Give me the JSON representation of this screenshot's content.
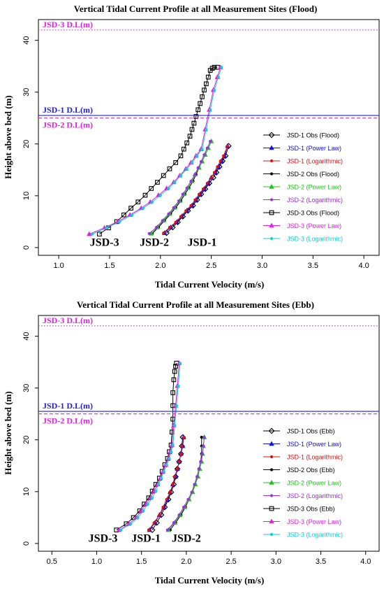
{
  "chart_data": [
    {
      "type": "line",
      "title": "Vertical Tidal Current Profile at all Measurement Sites (Flood)",
      "xlabel": "Tidal Current Velocity (m/s)",
      "ylabel": "Height above bed (m)",
      "xlim": [
        0.8,
        4.15
      ],
      "ylim": [
        -1.5,
        44
      ],
      "xticks": [
        "1.0",
        "1.5",
        "2.0",
        "2.5",
        "3.0",
        "3.5",
        "4.0"
      ],
      "yticks": [
        "0",
        "10",
        "20",
        "30",
        "40"
      ],
      "xtick_values": [
        1.0,
        1.5,
        2.0,
        2.5,
        3.0,
        3.5,
        4.0
      ],
      "ytick_values": [
        0,
        10,
        20,
        30,
        40
      ],
      "grid": false,
      "legend_position": "right",
      "hlines": [
        {
          "label": "JSD-3 D.L(m)",
          "y": 42.0,
          "color": "#e020e0",
          "style": "dotted"
        },
        {
          "label": "JSD-1 D.L(m)",
          "y": 25.5,
          "color": "#2020e0",
          "style": "solid"
        },
        {
          "label": "JSD-2 D.L(m)",
          "y": 25.0,
          "color": "#e020e0",
          "style": "dashed"
        }
      ],
      "site_labels": [
        {
          "text": "JSD-3",
          "x": 1.45,
          "y": 0.3
        },
        {
          "text": "JSD-2",
          "x": 1.94,
          "y": 0.3
        },
        {
          "text": "JSD-1",
          "x": 2.41,
          "y": 0.3
        }
      ],
      "series": [
        {
          "name": "JSD-1 Obs (Flood)",
          "color": "#000000",
          "marker": "diamond",
          "x": [
            2.06,
            2.12,
            2.17,
            2.22,
            2.27,
            2.32,
            2.36,
            2.4,
            2.44,
            2.48,
            2.52,
            2.55,
            2.58,
            2.61,
            2.64,
            2.67
          ],
          "y": [
            2.8,
            3.9,
            4.9,
            6.0,
            7.1,
            8.1,
            9.2,
            10.3,
            11.3,
            12.4,
            13.5,
            14.5,
            15.6,
            16.7,
            17.7,
            19.6
          ]
        },
        {
          "name": "JSD-1 (Power Law)",
          "color": "#1010e0",
          "marker": "triangle",
          "x": [
            2.04,
            2.1,
            2.16,
            2.21,
            2.26,
            2.31,
            2.35,
            2.39,
            2.43,
            2.47,
            2.5,
            2.54,
            2.57,
            2.6,
            2.63,
            2.66
          ],
          "y": [
            2.8,
            3.9,
            4.9,
            6.0,
            7.1,
            8.1,
            9.2,
            10.3,
            11.3,
            12.4,
            13.5,
            14.5,
            15.6,
            16.7,
            17.7,
            19.6
          ]
        },
        {
          "name": "JSD-1 (Logarithmic)",
          "color": "#e01010",
          "marker": "dot",
          "x": [
            2.03,
            2.09,
            2.15,
            2.2,
            2.25,
            2.3,
            2.34,
            2.38,
            2.42,
            2.46,
            2.5,
            2.53,
            2.56,
            2.59,
            2.62,
            2.66
          ],
          "y": [
            2.8,
            3.9,
            4.9,
            6.0,
            7.1,
            8.1,
            9.2,
            10.3,
            11.3,
            12.4,
            13.5,
            14.5,
            15.6,
            16.7,
            17.7,
            19.6
          ]
        },
        {
          "name": "JSD-2 Obs (Flood)",
          "color": "#000000",
          "marker": "dot",
          "x": [
            1.92,
            1.98,
            2.04,
            2.1,
            2.15,
            2.2,
            2.24,
            2.28,
            2.32,
            2.35,
            2.38,
            2.41,
            2.44,
            2.47,
            2.5
          ],
          "y": [
            2.7,
            3.9,
            5.2,
            6.5,
            7.7,
            9.0,
            10.3,
            11.5,
            12.8,
            14.1,
            15.4,
            16.6,
            17.9,
            19.2,
            20.5
          ]
        },
        {
          "name": "JSD-2 (Power Law)",
          "color": "#20c020",
          "marker": "triangle",
          "x": [
            1.91,
            1.97,
            2.03,
            2.09,
            2.14,
            2.19,
            2.23,
            2.27,
            2.31,
            2.34,
            2.38,
            2.41,
            2.44,
            2.47,
            2.5
          ],
          "y": [
            2.7,
            3.9,
            5.2,
            6.5,
            7.7,
            9.0,
            10.3,
            11.5,
            12.8,
            14.1,
            15.4,
            16.6,
            17.9,
            19.2,
            20.5
          ]
        },
        {
          "name": "JSD-2 (Logarithmic)",
          "color": "#9a30e0",
          "marker": "dot",
          "x": [
            1.89,
            1.96,
            2.02,
            2.08,
            2.13,
            2.18,
            2.22,
            2.26,
            2.3,
            2.34,
            2.37,
            2.4,
            2.43,
            2.46,
            2.49
          ],
          "y": [
            2.7,
            3.9,
            5.2,
            6.5,
            7.7,
            9.0,
            10.3,
            11.5,
            12.8,
            14.1,
            15.4,
            16.6,
            17.9,
            19.2,
            20.5
          ]
        },
        {
          "name": "JSD-3 Obs (Flood)",
          "color": "#000000",
          "marker": "square",
          "x": [
            1.4,
            1.49,
            1.57,
            1.64,
            1.71,
            1.78,
            1.85,
            1.91,
            1.97,
            2.03,
            2.09,
            2.15,
            2.2,
            2.23,
            2.26,
            2.29,
            2.31,
            2.33,
            2.35,
            2.37,
            2.39,
            2.41,
            2.43,
            2.45,
            2.47,
            2.49,
            2.51,
            2.53,
            2.56
          ],
          "y": [
            2.6,
            3.8,
            5.0,
            6.3,
            7.6,
            8.8,
            10.1,
            11.4,
            12.6,
            13.9,
            15.2,
            16.4,
            17.7,
            19.0,
            20.2,
            21.5,
            22.8,
            24.0,
            25.3,
            26.6,
            27.8,
            29.1,
            30.4,
            31.6,
            32.9,
            34.2,
            34.6,
            34.8,
            34.8
          ]
        },
        {
          "name": "JSD-3 (Power Law)",
          "color": "#e020e0",
          "marker": "triangle",
          "x": [
            1.3,
            1.45,
            1.58,
            1.7,
            1.81,
            1.9,
            1.98,
            2.06,
            2.13,
            2.19,
            2.25,
            2.3,
            2.35,
            2.4,
            2.44,
            2.48,
            2.52,
            2.56,
            2.59
          ],
          "y": [
            2.6,
            3.8,
            5.0,
            6.3,
            7.6,
            8.8,
            10.1,
            11.4,
            12.6,
            13.9,
            15.2,
            16.4,
            17.7,
            19.0,
            22.8,
            26.6,
            30.4,
            32.9,
            34.8
          ]
        },
        {
          "name": "JSD-3 (Logarithmic)",
          "color": "#10d0d0",
          "marker": "dot",
          "x": [
            1.33,
            1.47,
            1.6,
            1.72,
            1.83,
            1.92,
            2.0,
            2.08,
            2.14,
            2.2,
            2.26,
            2.31,
            2.36,
            2.41,
            2.45,
            2.49,
            2.53,
            2.57,
            2.6
          ],
          "y": [
            2.6,
            3.8,
            5.0,
            6.3,
            7.6,
            8.8,
            10.1,
            11.4,
            12.6,
            13.9,
            15.2,
            16.4,
            17.7,
            19.0,
            22.8,
            26.6,
            30.4,
            32.9,
            34.8
          ]
        }
      ]
    },
    {
      "type": "line",
      "title": "Vertical Tidal Current Profile at all Measurement Sites (Ebb)",
      "xlabel": "Tidal Current Velocity (m/s)",
      "ylabel": "Height above bed (m)",
      "xlim": [
        0.35,
        4.15
      ],
      "ylim": [
        -1.5,
        44
      ],
      "xticks": [
        "0.5",
        "1.0",
        "1.5",
        "2.0",
        "2.5",
        "3.0",
        "3.5",
        "4.0"
      ],
      "yticks": [
        "0",
        "10",
        "20",
        "30",
        "40"
      ],
      "xtick_values": [
        0.5,
        1.0,
        1.5,
        2.0,
        2.5,
        3.0,
        3.5,
        4.0
      ],
      "ytick_values": [
        0,
        10,
        20,
        30,
        40
      ],
      "grid": false,
      "legend_position": "right",
      "hlines": [
        {
          "label": "JSD-3 D.L(m)",
          "y": 42.0,
          "color": "#e020e0",
          "style": "dotted"
        },
        {
          "label": "JSD-1 D.L(m)",
          "y": 25.5,
          "color": "#2020e0",
          "style": "solid"
        },
        {
          "label": "JSD-2 D.L(m)",
          "y": 25.0,
          "color": "#e020e0",
          "style": "dashed"
        }
      ],
      "site_labels": [
        {
          "text": "JSD-3",
          "x": 1.07,
          "y": 0.3
        },
        {
          "text": "JSD-1",
          "x": 1.55,
          "y": 0.3
        },
        {
          "text": "JSD-2",
          "x": 2.0,
          "y": 0.3
        }
      ],
      "series": [
        {
          "name": "JSD-1 Obs (Ebb)",
          "color": "#000000",
          "marker": "diamond",
          "x": [
            1.62,
            1.67,
            1.72,
            1.76,
            1.8,
            1.83,
            1.86,
            1.88,
            1.9,
            1.92,
            1.94,
            1.95,
            1.96
          ],
          "y": [
            2.6,
            4.0,
            5.5,
            7.0,
            8.5,
            9.9,
            11.4,
            12.9,
            14.4,
            15.8,
            17.3,
            18.8,
            20.5
          ]
        },
        {
          "name": "JSD-1 (Power Law)",
          "color": "#1010e0",
          "marker": "triangle",
          "x": [
            1.59,
            1.65,
            1.7,
            1.75,
            1.79,
            1.82,
            1.85,
            1.88,
            1.9,
            1.92,
            1.94,
            1.96,
            1.97
          ],
          "y": [
            2.6,
            4.0,
            5.5,
            7.0,
            8.5,
            9.9,
            11.4,
            12.9,
            14.4,
            15.8,
            17.3,
            18.8,
            20.5
          ]
        },
        {
          "name": "JSD-1 (Logarithmic)",
          "color": "#e01010",
          "marker": "dot",
          "x": [
            1.58,
            1.64,
            1.7,
            1.74,
            1.78,
            1.82,
            1.85,
            1.87,
            1.9,
            1.92,
            1.94,
            1.95,
            1.97
          ],
          "y": [
            2.6,
            4.0,
            5.5,
            7.0,
            8.5,
            9.9,
            11.4,
            12.9,
            14.4,
            15.8,
            17.3,
            18.8,
            20.5
          ]
        },
        {
          "name": "JSD-2 Obs (Ebb)",
          "color": "#000000",
          "marker": "dot",
          "x": [
            1.82,
            1.88,
            1.94,
            1.99,
            2.03,
            2.07,
            2.1,
            2.12,
            2.14,
            2.16,
            2.17,
            2.17,
            2.17
          ],
          "y": [
            2.6,
            4.0,
            5.5,
            7.0,
            8.5,
            9.9,
            11.4,
            12.9,
            14.4,
            15.8,
            17.3,
            18.8,
            20.5
          ]
        },
        {
          "name": "JSD-2 (Power Law)",
          "color": "#20c020",
          "marker": "triangle",
          "x": [
            1.8,
            1.87,
            1.93,
            1.98,
            2.03,
            2.07,
            2.1,
            2.13,
            2.15,
            2.17,
            2.18,
            2.19,
            2.2
          ],
          "y": [
            2.6,
            4.0,
            5.5,
            7.0,
            8.5,
            9.9,
            11.4,
            12.9,
            14.4,
            15.8,
            17.3,
            18.8,
            20.5
          ]
        },
        {
          "name": "JSD-2 (Logarithmic)",
          "color": "#9a30e0",
          "marker": "dot",
          "x": [
            1.79,
            1.86,
            1.92,
            1.97,
            2.02,
            2.06,
            2.09,
            2.12,
            2.14,
            2.16,
            2.18,
            2.19,
            2.2
          ],
          "y": [
            2.6,
            4.0,
            5.5,
            7.0,
            8.5,
            9.9,
            11.4,
            12.9,
            14.4,
            15.8,
            17.3,
            18.8,
            20.5
          ]
        },
        {
          "name": "JSD-3 Obs (Ebb)",
          "color": "#000000",
          "marker": "square",
          "x": [
            1.22,
            1.33,
            1.41,
            1.48,
            1.53,
            1.58,
            1.62,
            1.66,
            1.7,
            1.73,
            1.76,
            1.79,
            1.81,
            1.83,
            1.84,
            1.85,
            1.85,
            1.85,
            1.86,
            1.87,
            1.88,
            1.89
          ],
          "y": [
            2.6,
            3.8,
            5.0,
            6.3,
            7.6,
            8.8,
            10.1,
            11.4,
            12.6,
            13.9,
            15.2,
            16.4,
            17.7,
            19.0,
            21.5,
            24.0,
            26.6,
            29.1,
            31.6,
            33.2,
            34.2,
            34.8
          ]
        },
        {
          "name": "JSD-3 (Power Law)",
          "color": "#e020e0",
          "marker": "triangle",
          "x": [
            1.25,
            1.36,
            1.44,
            1.5,
            1.55,
            1.6,
            1.64,
            1.68,
            1.71,
            1.74,
            1.77,
            1.8,
            1.82,
            1.84,
            1.86,
            1.88,
            1.9,
            1.92
          ],
          "y": [
            2.6,
            3.8,
            5.0,
            6.3,
            7.6,
            8.8,
            10.1,
            11.4,
            12.6,
            13.9,
            15.2,
            16.4,
            17.7,
            19.0,
            22.8,
            26.6,
            30.4,
            34.8
          ]
        },
        {
          "name": "JSD-3 (Logarithmic)",
          "color": "#10d0d0",
          "marker": "dot",
          "x": [
            1.27,
            1.38,
            1.46,
            1.52,
            1.57,
            1.62,
            1.66,
            1.69,
            1.72,
            1.75,
            1.78,
            1.81,
            1.83,
            1.85,
            1.87,
            1.89,
            1.91,
            1.93
          ],
          "y": [
            2.6,
            3.8,
            5.0,
            6.3,
            7.6,
            8.8,
            10.1,
            11.4,
            12.6,
            13.9,
            15.2,
            16.4,
            17.7,
            19.0,
            22.8,
            26.6,
            30.4,
            34.8
          ]
        }
      ]
    }
  ]
}
